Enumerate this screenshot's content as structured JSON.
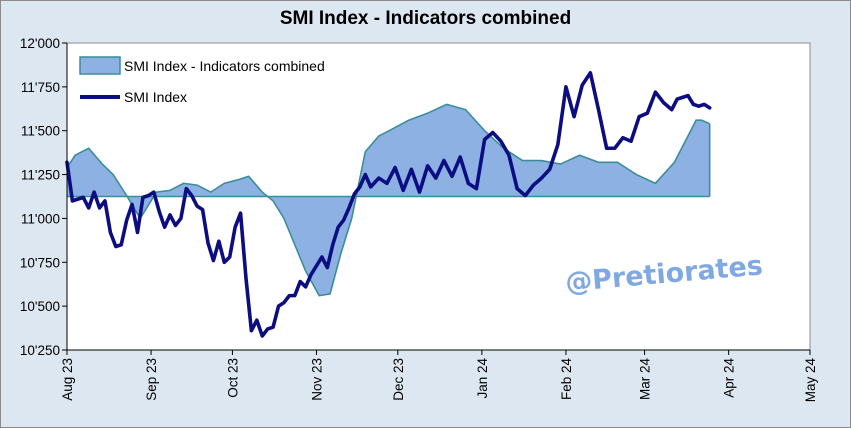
{
  "chart_data": {
    "type": "line",
    "title": "SMI Index - Indicators combined",
    "watermark": "@Pretiorates",
    "xlabel": "",
    "ylabel": "",
    "ylim": [
      10250,
      12000
    ],
    "y_ticks": [
      10250,
      10500,
      10750,
      11000,
      11250,
      11500,
      11750,
      12000
    ],
    "y_tick_labels": [
      "10'250",
      "10'500",
      "10'750",
      "11'000",
      "11'250",
      "11'500",
      "11'750",
      "12'000"
    ],
    "xlim": [
      "2023-08-01",
      "2024-05-01"
    ],
    "x_ticks": [
      "2023-08-01",
      "2023-09-01",
      "2023-10-01",
      "2023-11-01",
      "2023-12-01",
      "2024-01-01",
      "2024-02-01",
      "2024-03-01",
      "2024-04-01",
      "2024-05-01"
    ],
    "x_tick_labels": [
      "Aug 23",
      "Sep 23",
      "Oct 23",
      "Nov 23",
      "Dec 23",
      "Jan 24",
      "Feb 24",
      "Mar 24",
      "Apr 24",
      "May 24"
    ],
    "legend_position": "top-left",
    "grid": false,
    "area_baseline": 11125,
    "series": [
      {
        "name": "SMI Index - Indicators combined",
        "kind": "area",
        "fill_color": "#8db1e2",
        "line_color": "#3a8e9a",
        "x": [
          "2023-08-01",
          "2023-08-04",
          "2023-08-09",
          "2023-08-14",
          "2023-08-18",
          "2023-08-23",
          "2023-08-28",
          "2023-09-03",
          "2023-09-08",
          "2023-09-13",
          "2023-09-18",
          "2023-09-23",
          "2023-09-28",
          "2023-10-03",
          "2023-10-07",
          "2023-10-12",
          "2023-10-16",
          "2023-10-20",
          "2023-10-24",
          "2023-10-28",
          "2023-11-02",
          "2023-11-06",
          "2023-11-10",
          "2023-11-14",
          "2023-11-19",
          "2023-11-24",
          "2023-11-29",
          "2023-12-05",
          "2023-12-12",
          "2023-12-19",
          "2023-12-26",
          "2024-01-02",
          "2024-01-09",
          "2024-01-16",
          "2024-01-23",
          "2024-01-30",
          "2024-02-06",
          "2024-02-13",
          "2024-02-20",
          "2024-02-27",
          "2024-03-05",
          "2024-03-12",
          "2024-03-18",
          "2024-03-20",
          "2024-03-22",
          "2024-03-25"
        ],
        "values": [
          11290,
          11360,
          11400,
          11310,
          11250,
          11130,
          11000,
          11150,
          11160,
          11200,
          11190,
          11150,
          11200,
          11220,
          11240,
          11150,
          11100,
          11000,
          10850,
          10700,
          10560,
          10570,
          10800,
          11000,
          11380,
          11470,
          11510,
          11560,
          11600,
          11650,
          11620,
          11500,
          11400,
          11330,
          11330,
          11310,
          11360,
          11320,
          11320,
          11250,
          11200,
          11320,
          11500,
          11560,
          11560,
          11540
        ]
      },
      {
        "name": "SMI Index",
        "kind": "line",
        "line_color": "#0d0d82",
        "x": [
          "2023-08-01",
          "2023-08-03",
          "2023-08-05",
          "2023-08-07",
          "2023-08-09",
          "2023-08-11",
          "2023-08-13",
          "2023-08-15",
          "2023-08-17",
          "2023-08-19",
          "2023-08-21",
          "2023-08-23",
          "2023-08-25",
          "2023-08-27",
          "2023-08-29",
          "2023-08-31",
          "2023-09-02",
          "2023-09-04",
          "2023-09-06",
          "2023-09-08",
          "2023-09-10",
          "2023-09-12",
          "2023-09-14",
          "2023-09-16",
          "2023-09-18",
          "2023-09-20",
          "2023-09-22",
          "2023-09-24",
          "2023-09-26",
          "2023-09-28",
          "2023-09-30",
          "2023-10-02",
          "2023-10-04",
          "2023-10-06",
          "2023-10-08",
          "2023-10-10",
          "2023-10-12",
          "2023-10-14",
          "2023-10-16",
          "2023-10-18",
          "2023-10-20",
          "2023-10-22",
          "2023-10-24",
          "2023-10-26",
          "2023-10-28",
          "2023-10-30",
          "2023-11-01",
          "2023-11-03",
          "2023-11-05",
          "2023-11-07",
          "2023-11-09",
          "2023-11-11",
          "2023-11-13",
          "2023-11-15",
          "2023-11-17",
          "2023-11-19",
          "2023-11-21",
          "2023-11-24",
          "2023-11-27",
          "2023-11-30",
          "2023-12-03",
          "2023-12-06",
          "2023-12-09",
          "2023-12-12",
          "2023-12-15",
          "2023-12-18",
          "2023-12-21",
          "2023-12-24",
          "2023-12-27",
          "2023-12-30",
          "2024-01-02",
          "2024-01-05",
          "2024-01-08",
          "2024-01-11",
          "2024-01-14",
          "2024-01-17",
          "2024-01-20",
          "2024-01-23",
          "2024-01-26",
          "2024-01-29",
          "2024-02-01",
          "2024-02-04",
          "2024-02-07",
          "2024-02-10",
          "2024-02-13",
          "2024-02-16",
          "2024-02-19",
          "2024-02-22",
          "2024-02-25",
          "2024-02-28",
          "2024-03-02",
          "2024-03-05",
          "2024-03-08",
          "2024-03-11",
          "2024-03-13",
          "2024-03-15",
          "2024-03-17",
          "2024-03-19",
          "2024-03-21",
          "2024-03-23",
          "2024-03-25"
        ],
        "values": [
          11320,
          11100,
          11110,
          11120,
          11060,
          11150,
          11060,
          11100,
          10920,
          10840,
          10850,
          10990,
          11080,
          10920,
          11120,
          11130,
          11150,
          11040,
          10950,
          11020,
          10960,
          11000,
          11170,
          11130,
          11070,
          11050,
          10860,
          10760,
          10870,
          10750,
          10780,
          10950,
          11030,
          10660,
          10360,
          10420,
          10330,
          10370,
          10380,
          10500,
          10520,
          10560,
          10560,
          10640,
          10610,
          10680,
          10730,
          10780,
          10720,
          10850,
          10950,
          10990,
          11060,
          11140,
          11180,
          11250,
          11180,
          11230,
          11200,
          11290,
          11160,
          11280,
          11150,
          11300,
          11230,
          11330,
          11240,
          11350,
          11200,
          11170,
          11450,
          11490,
          11440,
          11360,
          11170,
          11130,
          11190,
          11230,
          11280,
          11420,
          11750,
          11580,
          11760,
          11830,
          11620,
          11400,
          11400,
          11460,
          11440,
          11580,
          11600,
          11720,
          11660,
          11620,
          11680,
          11690,
          11700,
          11650,
          11640,
          11650,
          11630
        ]
      }
    ]
  }
}
